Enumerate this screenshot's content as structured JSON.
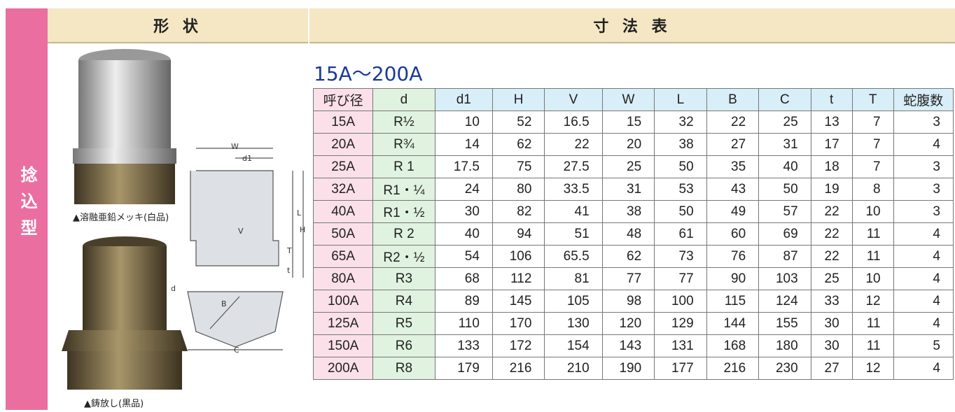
{
  "side_label": "捻込型",
  "header": {
    "left": "形 状",
    "right": "寸 法 表"
  },
  "photos": [
    {
      "caption": "▲溶融亜鉛メッキ(白品)"
    },
    {
      "caption": "▲鋳放し(黒品)"
    }
  ],
  "diagram": {
    "labels": [
      "W",
      "d1",
      "L",
      "H",
      "V",
      "T",
      "t",
      "d",
      "B",
      "C"
    ]
  },
  "table": {
    "title": "15A～200A",
    "header": [
      "呼び径",
      "d",
      "d1",
      "H",
      "V",
      "W",
      "L",
      "B",
      "C",
      "t",
      "T",
      "蛇腹数"
    ],
    "rows": [
      [
        "15A",
        "R½",
        10,
        52,
        16.5,
        15,
        32,
        22,
        25,
        13,
        7,
        3
      ],
      [
        "20A",
        "R¾",
        14,
        62,
        22,
        20,
        38,
        27,
        31,
        17,
        7,
        4
      ],
      [
        "25A",
        "R 1",
        17.5,
        75,
        27.5,
        25,
        50,
        35,
        40,
        18,
        7,
        3
      ],
      [
        "32A",
        "R1・¼",
        24,
        80,
        33.5,
        31,
        53,
        43,
        50,
        19,
        8,
        3
      ],
      [
        "40A",
        "R1・½",
        30,
        82,
        41,
        38,
        50,
        49,
        57,
        22,
        10,
        3
      ],
      [
        "50A",
        "R 2",
        40,
        94,
        51,
        48,
        61,
        60,
        69,
        22,
        11,
        4
      ],
      [
        "65A",
        "R2・½",
        54,
        106,
        65.5,
        62,
        73,
        76,
        87,
        22,
        11,
        4
      ],
      [
        "80A",
        "R3",
        68,
        112,
        81,
        77,
        77,
        90,
        103,
        25,
        10,
        4
      ],
      [
        "100A",
        "R4",
        89,
        145,
        105,
        98,
        100,
        115,
        124,
        33,
        12,
        4
      ],
      [
        "125A",
        "R5",
        110,
        170,
        130,
        120,
        129,
        144,
        155,
        30,
        11,
        4
      ],
      [
        "150A",
        "R6",
        133,
        172,
        154,
        143,
        131,
        168,
        180,
        30,
        11,
        5
      ],
      [
        "200A",
        "R8",
        179,
        216,
        210,
        190,
        177,
        216,
        230,
        27,
        12,
        4
      ]
    ]
  }
}
